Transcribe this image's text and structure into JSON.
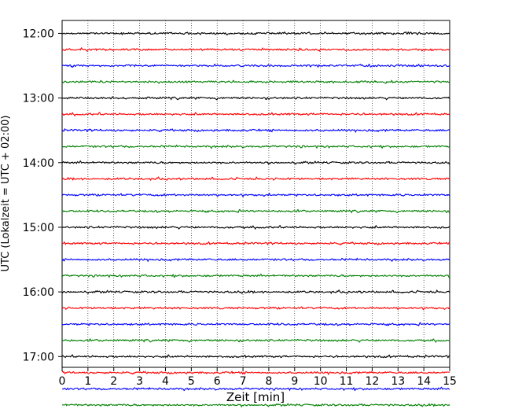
{
  "chart_data": {
    "type": "line",
    "title": "",
    "xlabel": "Zeit  [min]",
    "ylabel": "UTC (Lokalzeit = UTC + 02:00)",
    "xlim": [
      0,
      15
    ],
    "xticks": [
      0,
      1,
      2,
      3,
      4,
      5,
      6,
      7,
      8,
      9,
      10,
      11,
      12,
      13,
      14,
      15
    ],
    "ylim_minutes_after_12_00": [
      -12,
      310
    ],
    "yticks": [
      {
        "label": "12:00",
        "minutes_after_12_00": 0
      },
      {
        "label": "13:00",
        "minutes_after_12_00": 60
      },
      {
        "label": "14:00",
        "minutes_after_12_00": 120
      },
      {
        "label": "15:00",
        "minutes_after_12_00": 180
      },
      {
        "label": "16:00",
        "minutes_after_12_00": 240
      },
      {
        "label": "17:00",
        "minutes_after_12_00": 300
      }
    ],
    "grid": "vertical dotted",
    "trace_start_times": [
      "12:00",
      "12:15",
      "12:30",
      "12:45",
      "13:00",
      "13:15",
      "13:30",
      "13:45",
      "14:00",
      "14:15",
      "14:30",
      "14:45",
      "15:00",
      "15:15",
      "15:30",
      "15:45",
      "16:00",
      "16:15",
      "16:30",
      "16:45",
      "17:00",
      "17:15",
      "17:30",
      "17:45"
    ],
    "trace_duration_min": 15,
    "trace_colors": [
      "#000000",
      "#ff0000",
      "#0000ff",
      "#008000"
    ]
  }
}
